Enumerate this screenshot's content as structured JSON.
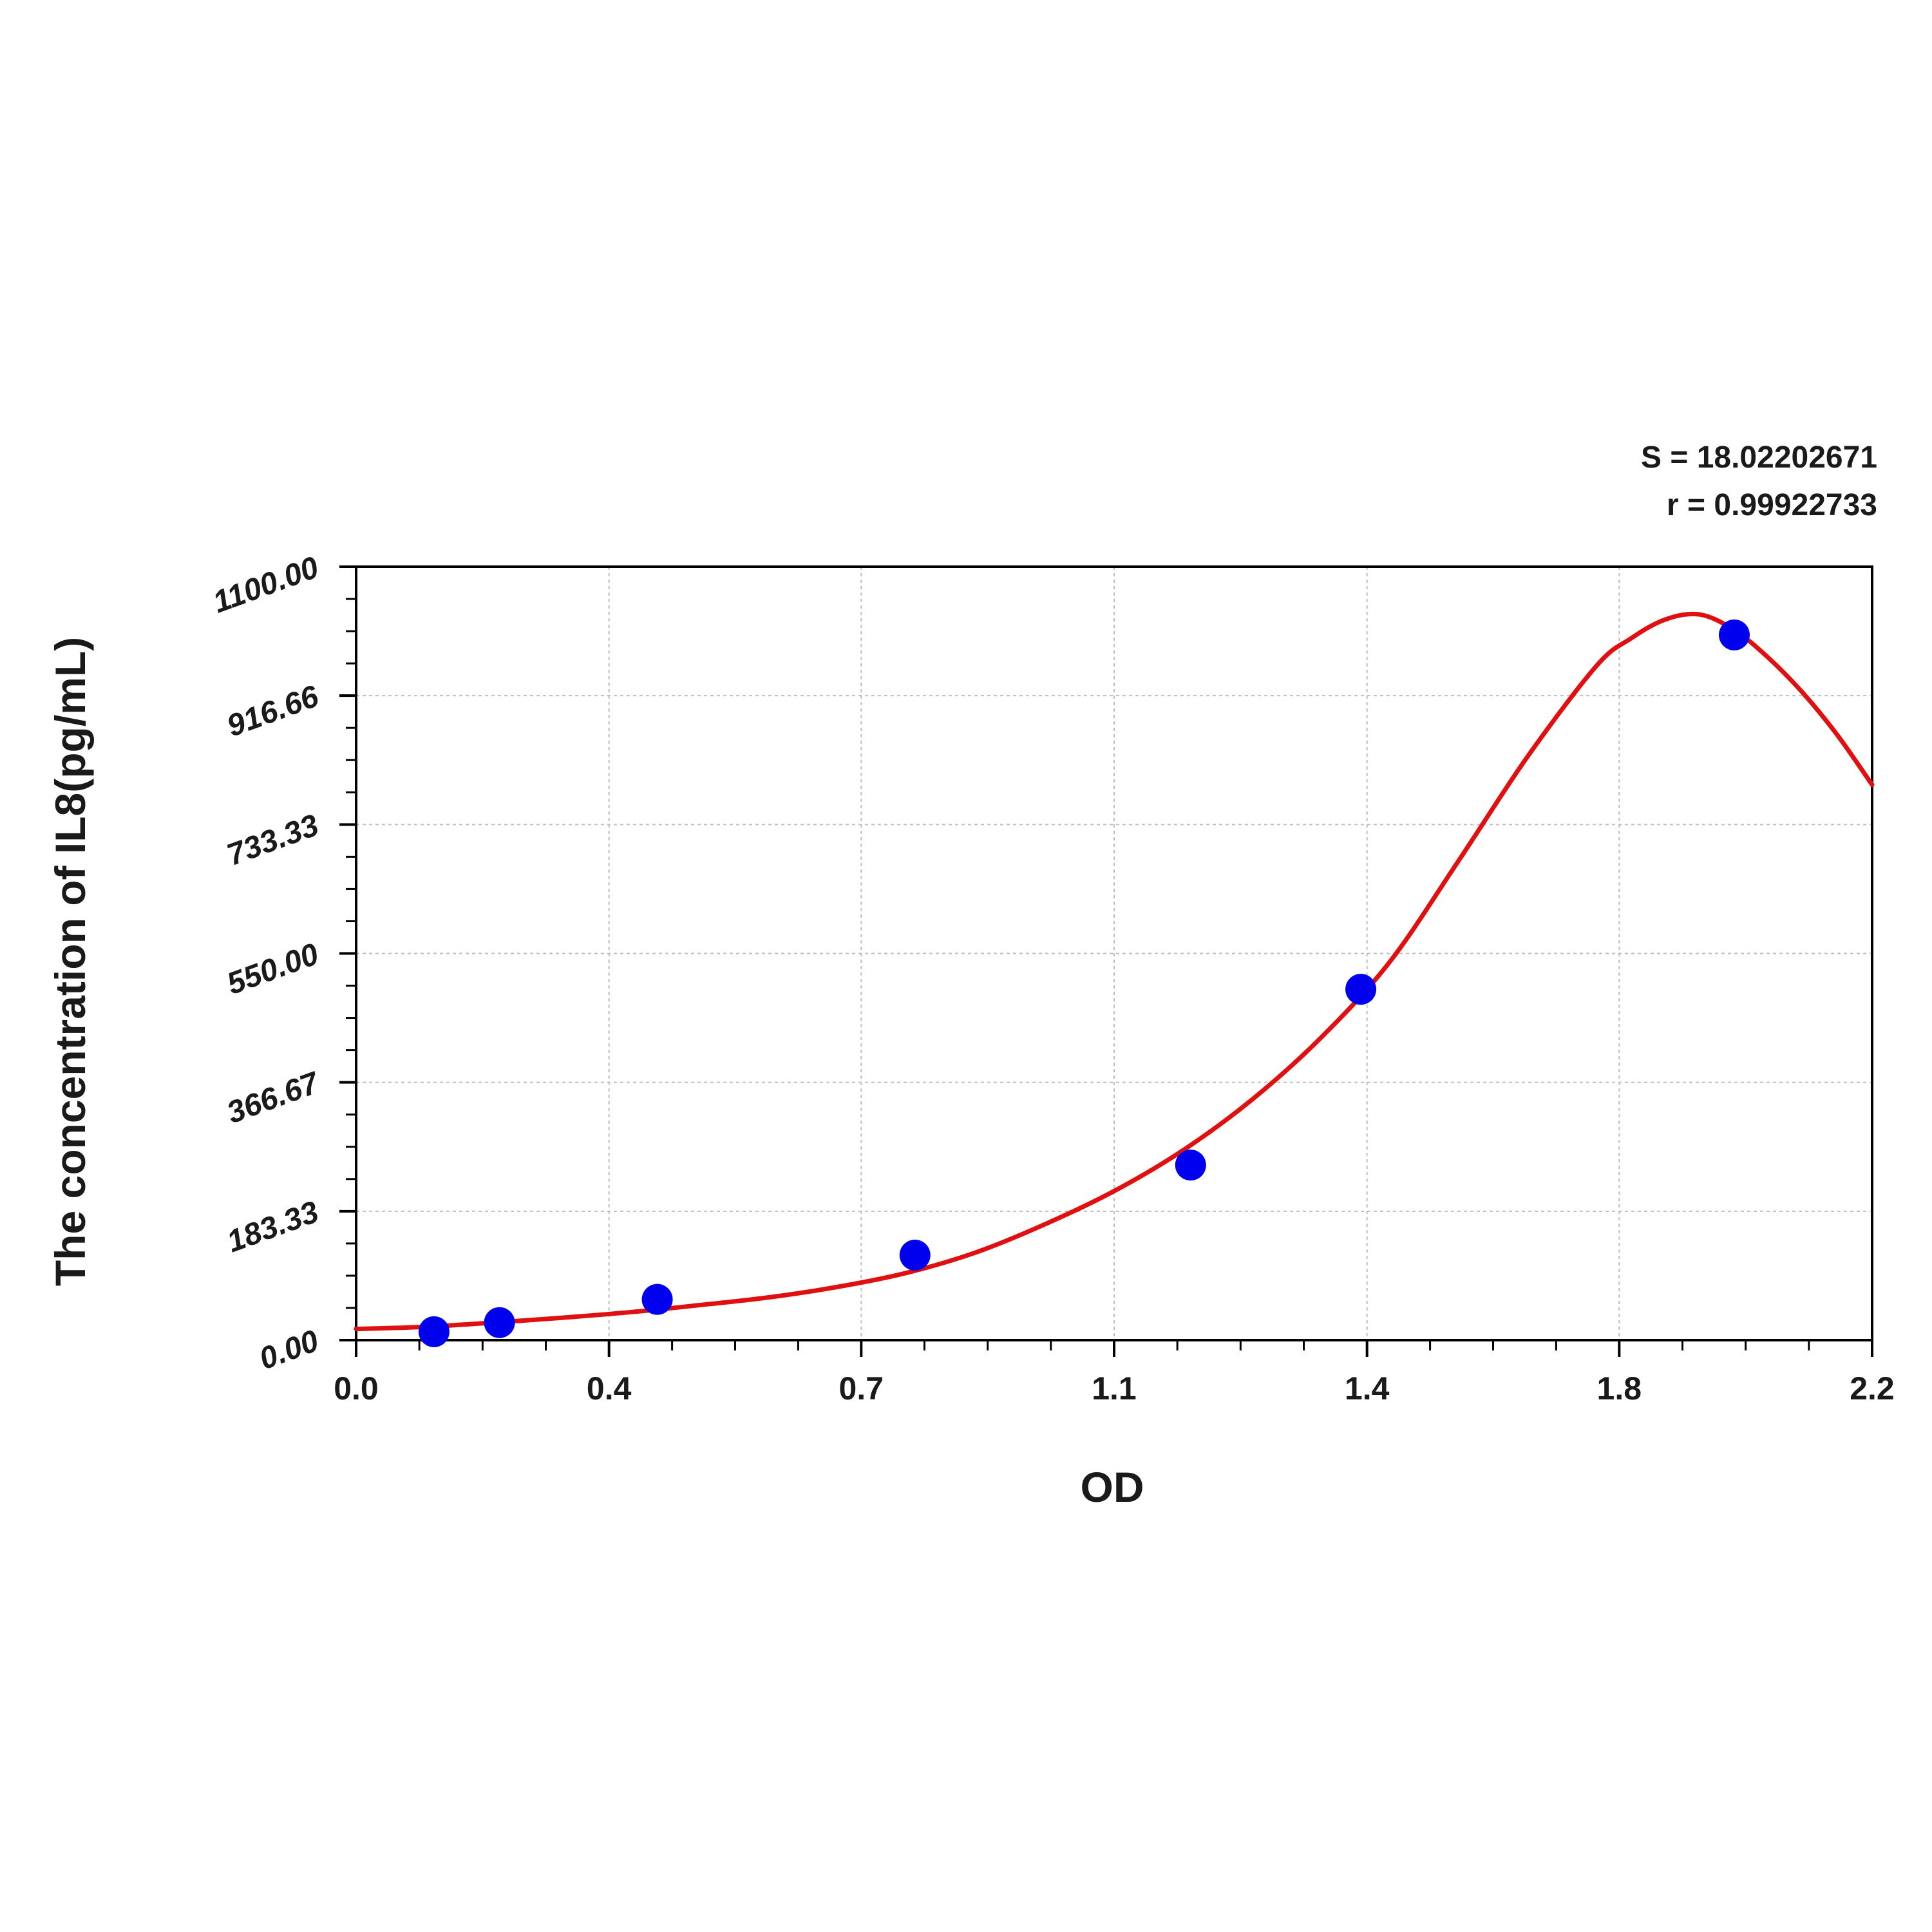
{
  "chart_data": {
    "type": "scatter",
    "xlabel": "OD",
    "ylabel": "The concentration of IL8(pg/mL)",
    "xlim": [
      0.0,
      2.2
    ],
    "ylim": [
      0.0,
      1100.0
    ],
    "x_ticks": [
      "0.0",
      "0.4",
      "0.7",
      "1.1",
      "1.4",
      "1.8",
      "2.2"
    ],
    "x_tick_values": [
      0.0,
      0.367,
      0.733,
      1.1,
      1.467,
      1.833,
      2.2
    ],
    "y_ticks": [
      "0.00",
      "183.33",
      "366.67",
      "550.00",
      "733.33",
      "916.66",
      "1100.00"
    ],
    "y_tick_values": [
      0,
      183.33,
      366.67,
      550.0,
      733.33,
      916.66,
      1100.0
    ],
    "grid": true,
    "stats": {
      "s": "S = 18.02202671",
      "r": "r = 0.99922733"
    },
    "series": [
      {
        "kind": "points",
        "color": "#0000ee",
        "x": [
          0.113,
          0.208,
          0.437,
          0.811,
          1.211,
          1.458,
          2.0
        ],
        "y": [
          12,
          25,
          58,
          121,
          249,
          499,
          1003
        ]
      },
      {
        "kind": "fitted-curve",
        "color": "#e01010",
        "x": [
          0.0,
          0.1,
          0.2,
          0.3,
          0.4,
          0.5,
          0.6,
          0.7,
          0.8,
          0.9,
          1.0,
          1.1,
          1.2,
          1.3,
          1.4,
          1.5,
          1.6,
          1.7,
          1.8,
          1.85,
          1.9,
          1.95,
          2.0,
          2.05,
          2.1,
          2.15,
          2.2
        ],
        "y": [
          16,
          19,
          25,
          32,
          40,
          50,
          61,
          76,
          96,
          125,
          165,
          212,
          270,
          342,
          430,
          538,
          682,
          830,
          959,
          998,
          1025,
          1032,
          1010,
          970,
          920,
          860,
          790
        ]
      }
    ]
  }
}
